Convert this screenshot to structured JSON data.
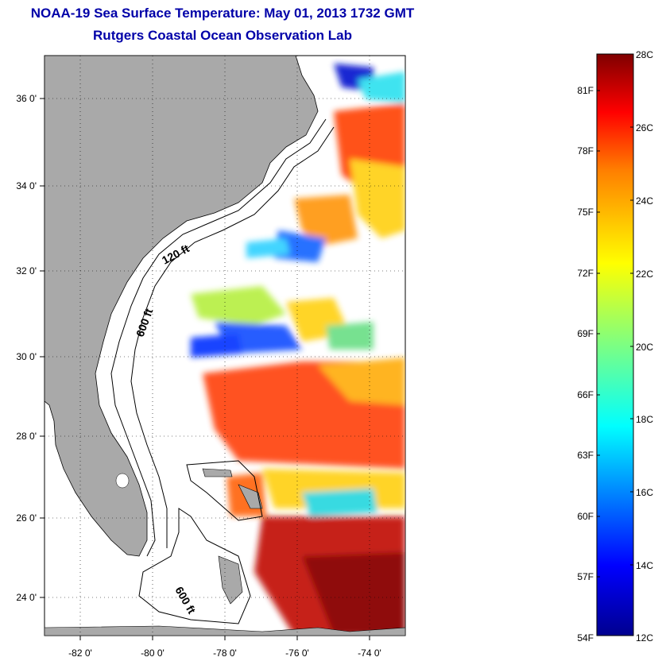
{
  "header": {
    "title": "NOAA-19 Sea Surface Temperature:  May 01, 2013 1732 GMT",
    "subtitle": "Rutgers Coastal Ocean Observation Lab"
  },
  "map": {
    "lon_range": [
      -83,
      -73
    ],
    "lat_range": [
      23,
      37
    ],
    "lon_ticks": [
      "-82 0'",
      "-80 0'",
      "-78 0'",
      "-76 0'",
      "-74 0'"
    ],
    "lat_ticks": [
      "36 0'",
      "34 0'",
      "32 0'",
      "30 0'",
      "28 0'",
      "26 0'",
      "24 0'"
    ],
    "contour_labels": [
      "120 ft",
      "600 ft",
      "600 ft"
    ],
    "land_color": "#a9a9a9",
    "grid": "dotted"
  },
  "colorbar": {
    "celsius_labels": [
      "28C",
      "26C",
      "24C",
      "22C",
      "20C",
      "18C",
      "16C",
      "14C",
      "12C"
    ],
    "fahrenheit_labels": [
      "81F",
      "78F",
      "75F",
      "72F",
      "69F",
      "66F",
      "63F",
      "60F",
      "57F",
      "54F"
    ],
    "range_c": [
      12,
      28
    ],
    "colors": [
      "#00008f",
      "#0000ff",
      "#00ffff",
      "#ffff00",
      "#ff7f00",
      "#ff0000",
      "#7f0000"
    ]
  }
}
